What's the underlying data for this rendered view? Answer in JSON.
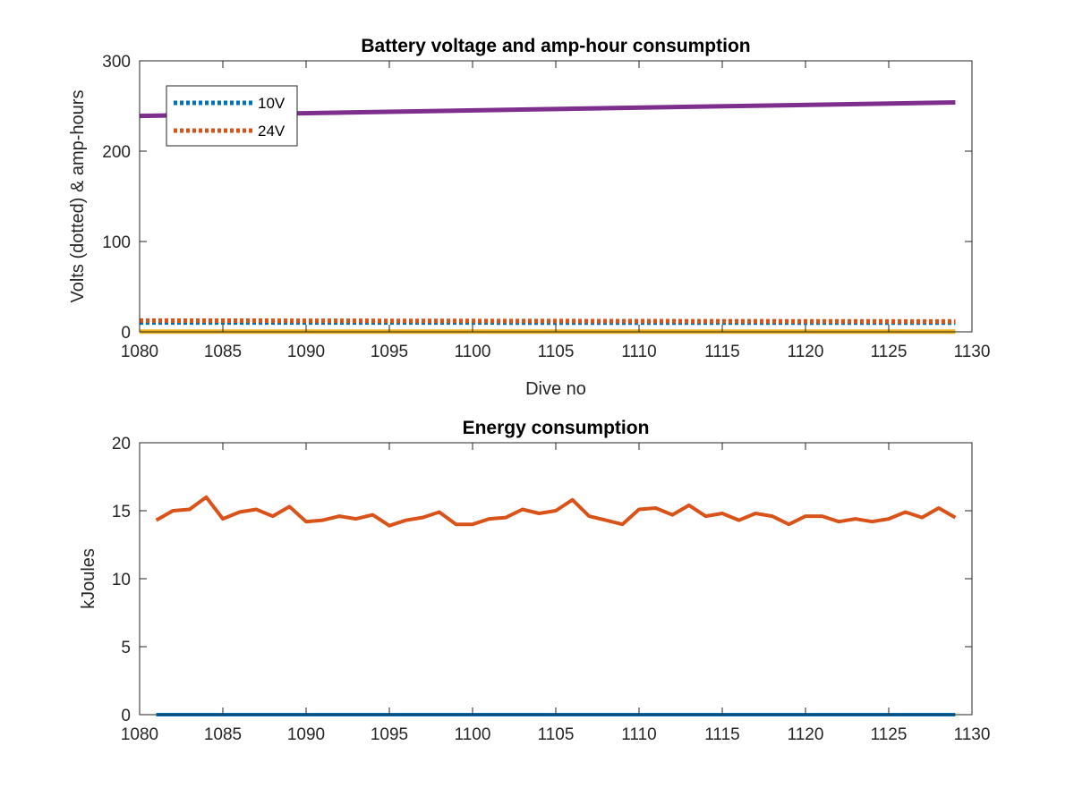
{
  "chart_data": [
    {
      "type": "line",
      "title": "Battery voltage and amp-hour consumption",
      "xlabel": "Dive no",
      "ylabel": "Volts (dotted) & amp-hours",
      "xlim": [
        1080,
        1130
      ],
      "ylim": [
        0,
        300
      ],
      "xticks": [
        1080,
        1085,
        1090,
        1095,
        1100,
        1105,
        1110,
        1115,
        1120,
        1125,
        1130
      ],
      "yticks": [
        0,
        100,
        200,
        300
      ],
      "grid": false,
      "legend_position": "top-left",
      "colors": {
        "blue": "#0072BD",
        "orange": "#D95319",
        "yellow": "#EDB120",
        "purple": "#7E2F8E"
      },
      "series": [
        {
          "name": "10V",
          "style": "dotted",
          "color": "#0072BD",
          "x": [
            1080,
            1129
          ],
          "values": [
            10.3,
            10.1
          ]
        },
        {
          "name": "24V",
          "style": "dotted",
          "color": "#D95319",
          "x": [
            1080,
            1129
          ],
          "values": [
            12.5,
            11.5
          ]
        },
        {
          "style": "solid",
          "color": "#EDB120",
          "x": [
            1080,
            1129
          ],
          "values": [
            0.2,
            0.2
          ]
        },
        {
          "style": "solid",
          "color": "#7E2F8E",
          "x": [
            1080,
            1129
          ],
          "values": [
            239,
            254
          ]
        }
      ]
    },
    {
      "type": "line",
      "title": "Energy consumption",
      "xlabel": "",
      "ylabel": "kJoules",
      "xlim": [
        1080,
        1130
      ],
      "ylim": [
        0,
        20
      ],
      "xticks": [
        1080,
        1085,
        1090,
        1095,
        1100,
        1105,
        1110,
        1115,
        1120,
        1125,
        1130
      ],
      "yticks": [
        0,
        5,
        10,
        15,
        20
      ],
      "grid": false,
      "series": [
        {
          "style": "solid",
          "color": "#0072BD",
          "x": [
            1081,
            1129
          ],
          "values": [
            0,
            0
          ]
        },
        {
          "style": "solid",
          "color": "#D95319",
          "x": [
            1081,
            1082,
            1083,
            1084,
            1085,
            1086,
            1087,
            1088,
            1089,
            1090,
            1091,
            1092,
            1093,
            1094,
            1095,
            1096,
            1097,
            1098,
            1099,
            1100,
            1101,
            1102,
            1103,
            1104,
            1105,
            1106,
            1107,
            1108,
            1109,
            1110,
            1111,
            1112,
            1113,
            1114,
            1115,
            1116,
            1117,
            1118,
            1119,
            1120,
            1121,
            1122,
            1123,
            1124,
            1125,
            1126,
            1127,
            1128,
            1129
          ],
          "values": [
            14.3,
            15.0,
            15.1,
            16.0,
            14.4,
            14.9,
            15.1,
            14.6,
            15.3,
            14.2,
            14.3,
            14.6,
            14.4,
            14.7,
            13.9,
            14.3,
            14.5,
            14.9,
            14.0,
            14.0,
            14.4,
            14.5,
            15.1,
            14.8,
            15.0,
            15.8,
            14.6,
            14.3,
            14.0,
            15.1,
            15.2,
            14.7,
            15.4,
            14.6,
            14.8,
            14.3,
            14.8,
            14.6,
            14.0,
            14.6,
            14.6,
            14.2,
            14.4,
            14.2,
            14.4,
            14.9,
            14.5,
            15.2,
            14.5
          ]
        }
      ]
    }
  ]
}
